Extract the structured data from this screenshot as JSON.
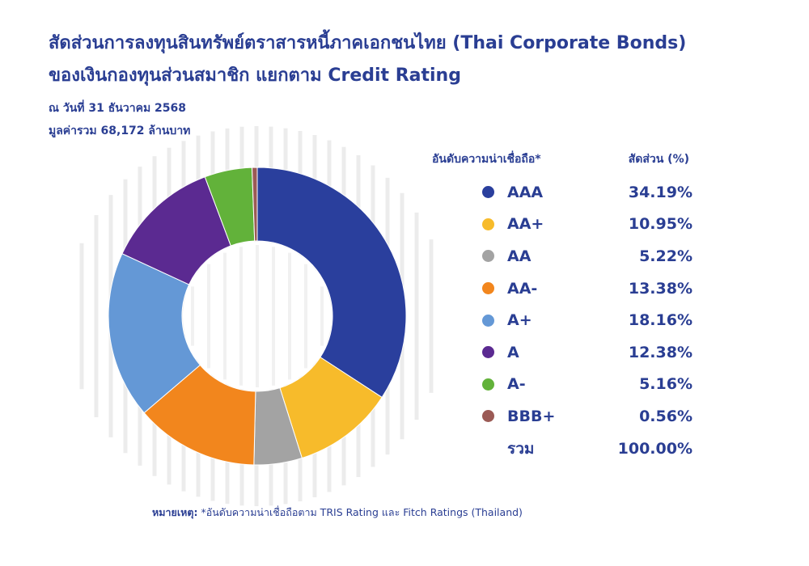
{
  "header": {
    "title_line1": "สัดส่วนการลงทุนสินทรัพย์ตราสารหนี้ภาคเอกชนไทย (Thai Corporate Bonds)",
    "title_line2": "ของเงินกองทุนส่วนสมาชิก แยกตาม Credit Rating",
    "date_line": "ณ วันที่ 31 ธันวาคม 2568",
    "total_line": "มูลค่ารวม 68,172 ล้านบาท"
  },
  "chart_data": {
    "type": "pie",
    "donut": true,
    "title": "สัดส่วนการลงทุนสินทรัพย์ตราสารหนี้ภาคเอกชนไทย (Thai Corporate Bonds) ของเงินกองทุนส่วนสมาชิก แยกตาม Credit Rating",
    "legend_header_label": "อันดับความน่าเชื่อถือ*",
    "legend_header_value": "สัดส่วน (%)",
    "legend_position": "right",
    "slices": [
      {
        "label": "AAA",
        "value": 34.19,
        "display": "34.19%",
        "color": "#2a3f9d"
      },
      {
        "label": "AA+",
        "value": 10.95,
        "display": "10.95%",
        "color": "#f7bb2b"
      },
      {
        "label": "AA",
        "value": 5.22,
        "display": "5.22%",
        "color": "#a3a3a3"
      },
      {
        "label": "AA-",
        "value": 13.38,
        "display": "13.38%",
        "color": "#f2861d"
      },
      {
        "label": "A+",
        "value": 18.16,
        "display": "18.16%",
        "color": "#6498d6"
      },
      {
        "label": "A",
        "value": 12.38,
        "display": "12.38%",
        "color": "#5b2a91"
      },
      {
        "label": "A-",
        "value": 5.16,
        "display": "5.16%",
        "color": "#62b23a"
      },
      {
        "label": "BBB+",
        "value": 0.56,
        "display": "0.56%",
        "color": "#9b5a55"
      }
    ],
    "total_label": "รวม",
    "total_display": "100.00%"
  },
  "footnote": {
    "label": "หมายเหตุ:",
    "text": "*อันดับความน่าเชื่อถือตาม TRIS Rating และ Fitch Ratings (Thailand)"
  }
}
